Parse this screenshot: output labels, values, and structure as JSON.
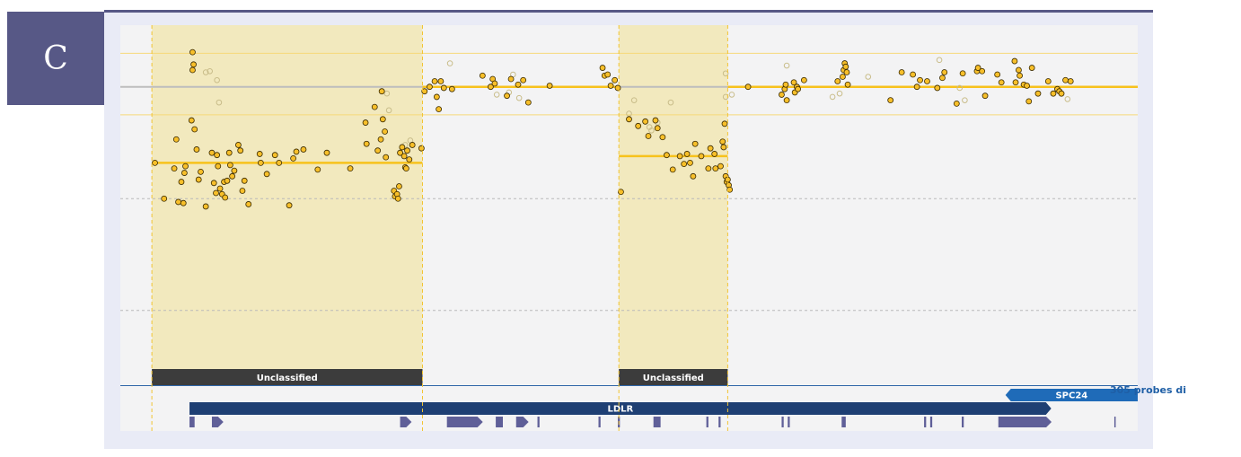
{
  "panel_label": "C",
  "probe_count_label": "305 probes di",
  "colors": {
    "panel_tag": "#575886",
    "segment_fill": "#f2e9be",
    "segment_line": "#f7c21c",
    "point_fill": "#f7bf2a",
    "gene_dark": "#1e3f73",
    "gene_mid": "#1f6bb8",
    "exon": "#5f5f98",
    "label_bar": "#3c3c3c"
  },
  "chart_data": {
    "type": "scatter",
    "title": "",
    "xlabel": "",
    "ylabel": "",
    "x_domain": [
      0,
      1000
    ],
    "ylim": [
      -2.5,
      0.6
    ],
    "reference_lines": [
      {
        "y": 0.3,
        "style": "thin-yellow"
      },
      {
        "y": 0,
        "style": "solid-gray"
      },
      {
        "y": -0.25,
        "style": "thin-yellow"
      },
      {
        "y": -1.0,
        "style": "dashed-gray"
      },
      {
        "y": -2.0,
        "style": "dashed-gray"
      }
    ],
    "segments": [
      {
        "x": [
          31,
          297
        ],
        "mean": -0.68,
        "highlighted": true,
        "label": "Unclassified"
      },
      {
        "x": [
          297,
          490
        ],
        "mean": 0.0,
        "highlighted": false,
        "label": ""
      },
      {
        "x": [
          490,
          597
        ],
        "mean": -0.62,
        "highlighted": true,
        "label": "Unclassified"
      },
      {
        "x": [
          597,
          1000
        ],
        "mean": 0.0,
        "highlighted": false,
        "label": ""
      }
    ],
    "genes": [
      {
        "name": "LDLR",
        "x": [
          68,
          915
        ],
        "strand": "+",
        "row": 1
      },
      {
        "name": "SPC24",
        "x": [
          870,
          1000
        ],
        "strand": "-",
        "row": 0
      }
    ],
    "exons": [
      {
        "x": 68,
        "w": 5
      },
      {
        "x": 90,
        "w": 6,
        "arrow": true
      },
      {
        "x": 275,
        "w": 6,
        "arrow": true
      },
      {
        "x": 321,
        "w": 30,
        "arrow": true
      },
      {
        "x": 369,
        "w": 7
      },
      {
        "x": 389,
        "w": 7,
        "arrow": true
      },
      {
        "x": 410,
        "w": 2
      },
      {
        "x": 470,
        "w": 2
      },
      {
        "x": 489,
        "w": 2
      },
      {
        "x": 524,
        "w": 7
      },
      {
        "x": 576,
        "w": 2
      },
      {
        "x": 588,
        "w": 2
      },
      {
        "x": 650,
        "w": 2
      },
      {
        "x": 656,
        "w": 2
      },
      {
        "x": 709,
        "w": 4
      },
      {
        "x": 790,
        "w": 2
      },
      {
        "x": 796,
        "w": 2
      },
      {
        "x": 827,
        "w": 2
      },
      {
        "x": 863,
        "w": 47,
        "arrow": true
      },
      {
        "x": 977,
        "w": 1
      }
    ],
    "points": [
      {
        "x": 34,
        "y": -0.68
      },
      {
        "x": 43,
        "y": -1.0
      },
      {
        "x": 53,
        "y": -0.73
      },
      {
        "x": 55,
        "y": -0.47
      },
      {
        "x": 57,
        "y": -1.03
      },
      {
        "x": 60,
        "y": -0.85
      },
      {
        "x": 62,
        "y": -1.04
      },
      {
        "x": 63,
        "y": -0.77
      },
      {
        "x": 64,
        "y": -0.71
      },
      {
        "x": 70,
        "y": -0.3
      },
      {
        "x": 71,
        "y": 0.31
      },
      {
        "x": 71,
        "y": 0.15
      },
      {
        "x": 72,
        "y": 0.2
      },
      {
        "x": 73,
        "y": -0.38
      },
      {
        "x": 75,
        "y": -0.56
      },
      {
        "x": 77,
        "y": -0.83
      },
      {
        "x": 79,
        "y": -0.76
      },
      {
        "x": 84,
        "y": -1.07
      },
      {
        "x": 90,
        "y": -0.59
      },
      {
        "x": 92,
        "y": -0.86
      },
      {
        "x": 94,
        "y": -0.95
      },
      {
        "x": 95,
        "y": -0.61
      },
      {
        "x": 96,
        "y": -0.71
      },
      {
        "x": 98,
        "y": -0.91
      },
      {
        "x": 100,
        "y": -0.96
      },
      {
        "x": 102,
        "y": -0.85
      },
      {
        "x": 103,
        "y": -0.99
      },
      {
        "x": 105,
        "y": -0.84
      },
      {
        "x": 107,
        "y": -0.59
      },
      {
        "x": 108,
        "y": -0.7
      },
      {
        "x": 110,
        "y": -0.8
      },
      {
        "x": 112,
        "y": -0.75
      },
      {
        "x": 116,
        "y": -0.52
      },
      {
        "x": 118,
        "y": -0.57
      },
      {
        "x": 120,
        "y": -0.93
      },
      {
        "x": 122,
        "y": -0.84
      },
      {
        "x": 126,
        "y": -1.05
      },
      {
        "x": 137,
        "y": -0.6
      },
      {
        "x": 138,
        "y": -0.68
      },
      {
        "x": 144,
        "y": -0.78
      },
      {
        "x": 152,
        "y": -0.61
      },
      {
        "x": 156,
        "y": -0.68
      },
      {
        "x": 166,
        "y": -1.06
      },
      {
        "x": 170,
        "y": -0.64
      },
      {
        "x": 173,
        "y": -0.58
      },
      {
        "x": 180,
        "y": -0.56
      },
      {
        "x": 194,
        "y": -0.74
      },
      {
        "x": 203,
        "y": -0.59
      },
      {
        "x": 226,
        "y": -0.73
      },
      {
        "x": 241,
        "y": -0.32
      },
      {
        "x": 242,
        "y": -0.51
      },
      {
        "x": 250,
        "y": -0.18
      },
      {
        "x": 253,
        "y": -0.57
      },
      {
        "x": 256,
        "y": -0.47
      },
      {
        "x": 257,
        "y": -0.04
      },
      {
        "x": 258,
        "y": -0.29
      },
      {
        "x": 260,
        "y": -0.4
      },
      {
        "x": 261,
        "y": -0.63
      },
      {
        "x": 269,
        "y": -0.93
      },
      {
        "x": 270,
        "y": -0.98
      },
      {
        "x": 272,
        "y": -0.96
      },
      {
        "x": 273,
        "y": -1.0
      },
      {
        "x": 274,
        "y": -0.89
      },
      {
        "x": 275,
        "y": -0.59
      },
      {
        "x": 277,
        "y": -0.54
      },
      {
        "x": 279,
        "y": -0.62
      },
      {
        "x": 280,
        "y": -0.72
      },
      {
        "x": 281,
        "y": -0.73
      },
      {
        "x": 282,
        "y": -0.57
      },
      {
        "x": 284,
        "y": -0.65
      },
      {
        "x": 287,
        "y": -0.52
      },
      {
        "x": 296,
        "y": -0.55
      },
      {
        "x": 299,
        "y": -0.04
      },
      {
        "x": 304,
        "y": 0.0
      },
      {
        "x": 309,
        "y": 0.05
      },
      {
        "x": 311,
        "y": -0.09
      },
      {
        "x": 313,
        "y": -0.2
      },
      {
        "x": 315,
        "y": 0.05
      },
      {
        "x": 318,
        "y": -0.01
      },
      {
        "x": 326,
        "y": -0.02
      },
      {
        "x": 356,
        "y": 0.1
      },
      {
        "x": 364,
        "y": 0.0
      },
      {
        "x": 366,
        "y": 0.07
      },
      {
        "x": 368,
        "y": 0.03
      },
      {
        "x": 380,
        "y": -0.08
      },
      {
        "x": 384,
        "y": 0.07
      },
      {
        "x": 391,
        "y": 0.02
      },
      {
        "x": 396,
        "y": 0.06
      },
      {
        "x": 401,
        "y": -0.14
      },
      {
        "x": 422,
        "y": 0.01
      },
      {
        "x": 474,
        "y": 0.17
      },
      {
        "x": 476,
        "y": 0.1
      },
      {
        "x": 479,
        "y": 0.11
      },
      {
        "x": 482,
        "y": 0.01
      },
      {
        "x": 486,
        "y": 0.06
      },
      {
        "x": 489,
        "y": -0.01
      },
      {
        "x": 492,
        "y": -0.94
      },
      {
        "x": 500,
        "y": -0.29
      },
      {
        "x": 509,
        "y": -0.35
      },
      {
        "x": 516,
        "y": -0.31
      },
      {
        "x": 519,
        "y": -0.44
      },
      {
        "x": 526,
        "y": -0.3
      },
      {
        "x": 528,
        "y": -0.37
      },
      {
        "x": 533,
        "y": -0.45
      },
      {
        "x": 537,
        "y": -0.61
      },
      {
        "x": 543,
        "y": -0.74
      },
      {
        "x": 550,
        "y": -0.62
      },
      {
        "x": 554,
        "y": -0.69
      },
      {
        "x": 557,
        "y": -0.6
      },
      {
        "x": 560,
        "y": -0.68
      },
      {
        "x": 563,
        "y": -0.8
      },
      {
        "x": 565,
        "y": -0.51
      },
      {
        "x": 571,
        "y": -0.62
      },
      {
        "x": 578,
        "y": -0.73
      },
      {
        "x": 580,
        "y": -0.55
      },
      {
        "x": 584,
        "y": -0.6
      },
      {
        "x": 585,
        "y": -0.73
      },
      {
        "x": 590,
        "y": -0.71
      },
      {
        "x": 592,
        "y": -0.49
      },
      {
        "x": 593,
        "y": -0.54
      },
      {
        "x": 594,
        "y": -0.33
      },
      {
        "x": 595,
        "y": -0.8
      },
      {
        "x": 596,
        "y": -0.85
      },
      {
        "x": 597,
        "y": -0.83
      },
      {
        "x": 598,
        "y": -0.88
      },
      {
        "x": 599,
        "y": -0.92
      },
      {
        "x": 617,
        "y": 0.0
      },
      {
        "x": 650,
        "y": -0.07
      },
      {
        "x": 653,
        "y": -0.02
      },
      {
        "x": 654,
        "y": 0.02
      },
      {
        "x": 655,
        "y": -0.12
      },
      {
        "x": 662,
        "y": 0.04
      },
      {
        "x": 663,
        "y": -0.05
      },
      {
        "x": 665,
        "y": 0.0
      },
      {
        "x": 666,
        "y": -0.02
      },
      {
        "x": 672,
        "y": 0.06
      },
      {
        "x": 705,
        "y": 0.05
      },
      {
        "x": 710,
        "y": 0.09
      },
      {
        "x": 711,
        "y": 0.15
      },
      {
        "x": 712,
        "y": 0.21
      },
      {
        "x": 713,
        "y": 0.18
      },
      {
        "x": 714,
        "y": 0.13
      },
      {
        "x": 715,
        "y": 0.02
      },
      {
        "x": 757,
        "y": -0.12
      },
      {
        "x": 768,
        "y": 0.13
      },
      {
        "x": 779,
        "y": 0.11
      },
      {
        "x": 783,
        "y": 0.0
      },
      {
        "x": 786,
        "y": 0.06
      },
      {
        "x": 793,
        "y": 0.05
      },
      {
        "x": 803,
        "y": -0.01
      },
      {
        "x": 808,
        "y": 0.08
      },
      {
        "x": 810,
        "y": 0.13
      },
      {
        "x": 822,
        "y": -0.15
      },
      {
        "x": 828,
        "y": 0.12
      },
      {
        "x": 842,
        "y": 0.14
      },
      {
        "x": 843,
        "y": 0.17
      },
      {
        "x": 847,
        "y": 0.14
      },
      {
        "x": 850,
        "y": -0.08
      },
      {
        "x": 862,
        "y": 0.11
      },
      {
        "x": 866,
        "y": 0.04
      },
      {
        "x": 879,
        "y": 0.23
      },
      {
        "x": 880,
        "y": 0.04
      },
      {
        "x": 883,
        "y": 0.15
      },
      {
        "x": 884,
        "y": 0.1
      },
      {
        "x": 888,
        "y": 0.02
      },
      {
        "x": 891,
        "y": 0.01
      },
      {
        "x": 893,
        "y": -0.13
      },
      {
        "x": 896,
        "y": 0.17
      },
      {
        "x": 902,
        "y": -0.06
      },
      {
        "x": 912,
        "y": 0.05
      },
      {
        "x": 917,
        "y": -0.06
      },
      {
        "x": 921,
        "y": -0.02
      },
      {
        "x": 923,
        "y": -0.04
      },
      {
        "x": 925,
        "y": -0.06
      },
      {
        "x": 929,
        "y": 0.06
      },
      {
        "x": 934,
        "y": 0.05
      }
    ],
    "faint_points": [
      {
        "x": 84,
        "y": 0.13
      },
      {
        "x": 88,
        "y": 0.14
      },
      {
        "x": 95,
        "y": 0.06
      },
      {
        "x": 97,
        "y": -0.14
      },
      {
        "x": 262,
        "y": -0.06
      },
      {
        "x": 264,
        "y": -0.21
      },
      {
        "x": 280,
        "y": -0.52
      },
      {
        "x": 285,
        "y": -0.48
      },
      {
        "x": 324,
        "y": 0.21
      },
      {
        "x": 370,
        "y": -0.07
      },
      {
        "x": 382,
        "y": -0.05
      },
      {
        "x": 386,
        "y": 0.11
      },
      {
        "x": 392,
        "y": -0.1
      },
      {
        "x": 500,
        "y": -0.24
      },
      {
        "x": 505,
        "y": -0.12
      },
      {
        "x": 520,
        "y": -0.36
      },
      {
        "x": 522,
        "y": -0.39
      },
      {
        "x": 528,
        "y": -0.32
      },
      {
        "x": 541,
        "y": -0.14
      },
      {
        "x": 595,
        "y": 0.12
      },
      {
        "x": 595,
        "y": -0.09
      },
      {
        "x": 601,
        "y": -0.07
      },
      {
        "x": 655,
        "y": 0.19
      },
      {
        "x": 700,
        "y": -0.09
      },
      {
        "x": 707,
        "y": -0.06
      },
      {
        "x": 735,
        "y": 0.09
      },
      {
        "x": 805,
        "y": 0.24
      },
      {
        "x": 825,
        "y": -0.01
      },
      {
        "x": 830,
        "y": -0.12
      },
      {
        "x": 931,
        "y": -0.11
      }
    ]
  }
}
